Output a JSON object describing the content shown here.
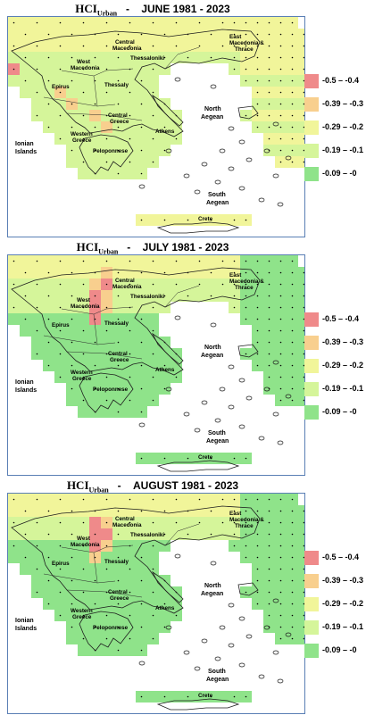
{
  "colors": {
    "c1": "#ef8a8a",
    "c2": "#f8cf8e",
    "c3": "#f1f59a",
    "c4": "#d5f59a",
    "c5": "#8fe38a",
    "frame": "#5a7fb5"
  },
  "legend": [
    {
      "label": "-0.5 – -0.4",
      "color_key": "c1"
    },
    {
      "label": "-0.39 – -0.3",
      "color_key": "c2"
    },
    {
      "label": "-0.29 – -0.2",
      "color_key": "c3"
    },
    {
      "label": "-0.19 – -0.1",
      "color_key": "c4"
    },
    {
      "label": "-0.09 – -0",
      "color_key": "c5"
    }
  ],
  "index_main": "HCI",
  "index_sub": "Urban",
  "regions": {
    "east_macedonia_1": "East",
    "east_macedonia_2": "Macedonia &",
    "east_macedonia_3": "Thrace",
    "central_macedonia_1": "Central",
    "central_macedonia_2": "Macedonia",
    "thessaloniki": "Thessaloniki",
    "west_macedonia_1": "West",
    "west_macedonia_2": "Macedonia",
    "epirus": "Epirus",
    "thessaly": "Thessaly",
    "central_greece_1": "Central",
    "central_greece_2": "Greece",
    "western_greece_1": "Western",
    "western_greece_2": "Greece",
    "athens": "Athens",
    "peloponnese": "Peloponnese",
    "north_aegean_1": "North",
    "north_aegean_2": "Aegean",
    "ionian_1": "Ionian",
    "ionian_2": "Islands",
    "south_aegean_1": "South",
    "south_aegean_2": "Aegean",
    "crete": "Crete"
  },
  "panels": [
    {
      "month": "JUNE",
      "period": "1981 - 2023",
      "dominant_class": "-0.19 – -0.1"
    },
    {
      "month": "JULY",
      "period": "1981 - 2023",
      "dominant_class": "-0.09 – -0"
    },
    {
      "month": "AUGUST",
      "period": "1981 - 2023",
      "dominant_class": "-0.09 – -0"
    }
  ]
}
